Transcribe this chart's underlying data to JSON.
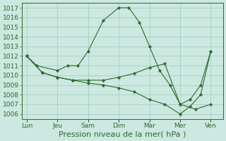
{
  "background_color": "#cce8e0",
  "grid_color": "#99ccbb",
  "line_color": "#2d6a2d",
  "marker_color": "#2d6a2d",
  "ylim": [
    1005.5,
    1017.5
  ],
  "yticks": [
    1006,
    1007,
    1008,
    1009,
    1010,
    1011,
    1012,
    1013,
    1014,
    1015,
    1016,
    1017
  ],
  "xlabel": "Pression niveau de la mer( hPa )",
  "xlabel_fontsize": 8,
  "tick_fontsize": 6.5,
  "xtick_labels": [
    "Lun",
    "Jeu",
    "Sam",
    "Dim",
    "Mar",
    "Mer",
    "Ven"
  ],
  "xtick_positions": [
    0,
    1,
    2,
    3,
    4,
    5,
    6
  ],
  "xlim": [
    -0.15,
    6.4
  ],
  "series": [
    {
      "comment": "high arc line - peaks around Dim/Mar",
      "x": [
        0,
        0.33,
        1.0,
        1.33,
        1.67,
        2.0,
        2.5,
        3.0,
        3.33,
        3.67,
        4.0,
        4.33,
        4.67,
        5.0,
        5.5,
        6.0
      ],
      "y": [
        1012,
        1011,
        1010.5,
        1011,
        1011,
        1012.5,
        1015.7,
        1017.0,
        1017.0,
        1015.5,
        1013.0,
        1010.5,
        1009.0,
        1007.0,
        1006.5,
        1007.0
      ]
    },
    {
      "comment": "low declining line",
      "x": [
        0,
        0.5,
        1.0,
        1.5,
        2.0,
        2.5,
        3.0,
        3.5,
        4.0,
        4.5,
        5.0,
        5.33,
        5.67,
        6.0
      ],
      "y": [
        1012,
        1010.3,
        1009.8,
        1009.5,
        1009.2,
        1009.0,
        1008.7,
        1008.3,
        1007.5,
        1007.0,
        1006.0,
        1006.8,
        1008.0,
        1012.5
      ]
    },
    {
      "comment": "middle line - relatively flat then rises at end",
      "x": [
        0,
        0.5,
        1.0,
        1.5,
        2.0,
        2.5,
        3.0,
        3.5,
        4.0,
        4.5,
        5.0,
        5.33,
        5.67,
        6.0
      ],
      "y": [
        1012,
        1010.3,
        1009.8,
        1009.5,
        1009.5,
        1009.5,
        1009.8,
        1010.2,
        1010.8,
        1011.2,
        1007.0,
        1007.5,
        1009.0,
        1012.5
      ]
    }
  ]
}
